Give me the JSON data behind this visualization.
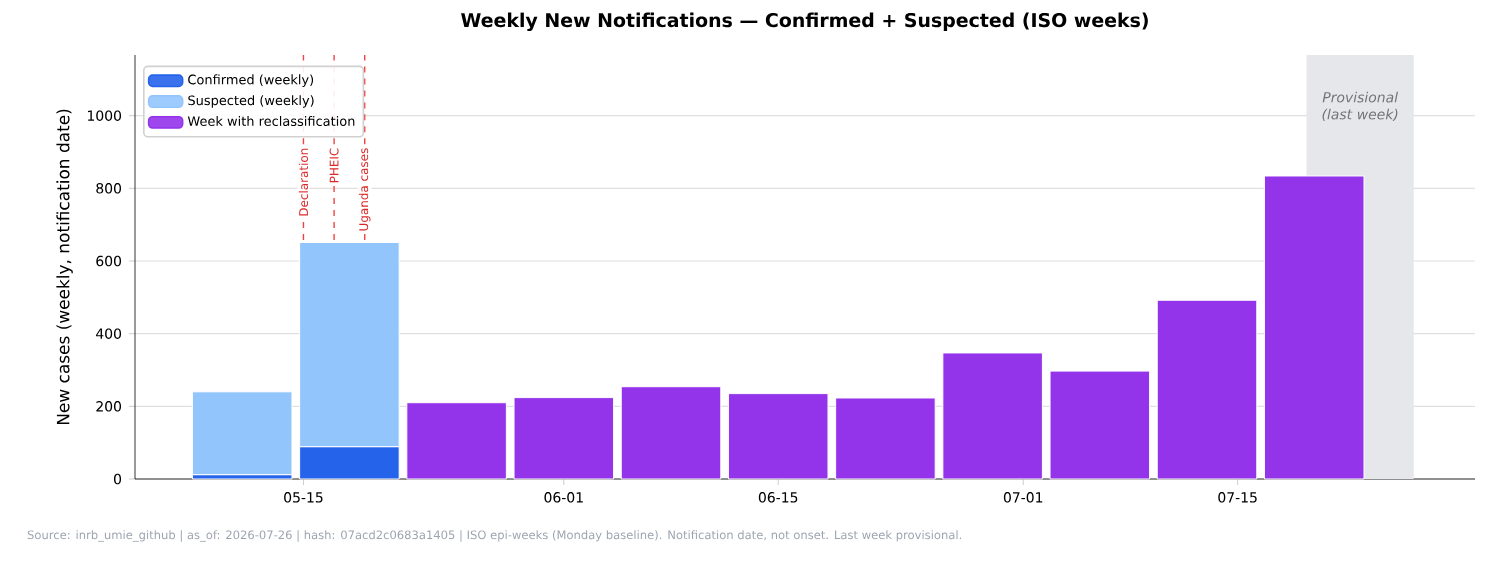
{
  "chart_data": {
    "type": "bar",
    "stacked": true,
    "title": "Weekly New Notifications — Confirmed + Suspected (ISO weeks)",
    "ylabel": "New cases (weekly, notification date)",
    "x": [
      "2026-05-11",
      "2026-05-18",
      "2026-05-25",
      "2026-06-01",
      "2026-06-08",
      "2026-06-15",
      "2026-06-22",
      "2026-06-29",
      "2026-07-06",
      "2026-07-13",
      "2026-07-20"
    ],
    "series": [
      {
        "name": "Confirmed (weekly)",
        "color": "#2563eb",
        "values": [
          12,
          89,
          null,
          null,
          null,
          null,
          null,
          null,
          null,
          null,
          null
        ]
      },
      {
        "name": "Suspected (weekly)",
        "color": "#93c5fd",
        "values": [
          228,
          562,
          null,
          null,
          null,
          null,
          null,
          null,
          null,
          null,
          null
        ]
      },
      {
        "name": "Week with reclassification",
        "color": "#9333ea",
        "values": [
          null,
          null,
          210,
          224,
          254,
          235,
          223,
          347,
          297,
          492,
          834
        ]
      }
    ],
    "xlim": [
      "2026-05-04",
      "2026-07-30T12:00"
    ],
    "xticks": [
      {
        "value": "2026-05-15",
        "label": "05-15"
      },
      {
        "value": "2026-06-01",
        "label": "06-01"
      },
      {
        "value": "2026-06-15",
        "label": "06-15"
      },
      {
        "value": "2026-07-01",
        "label": "07-01"
      },
      {
        "value": "2026-07-15",
        "label": "07-15"
      }
    ],
    "ylim": [
      0,
      1167
    ],
    "yticks": [
      0,
      200,
      400,
      600,
      800,
      1000
    ],
    "grid": "y",
    "legend": "top left",
    "ref_lines": [
      {
        "axis": "x",
        "value": "2026-05-15",
        "label": "Declaration",
        "color": "#ef4444",
        "line_style": "dashed"
      },
      {
        "axis": "x",
        "value": "2026-05-17",
        "label": "PHEIC",
        "color": "#ef4444",
        "line_style": "dashed"
      },
      {
        "axis": "x",
        "value": "2026-05-19",
        "label": "Uganda cases",
        "color": "#ef4444",
        "line_style": "dashed"
      }
    ],
    "bands": [
      {
        "axis": "x",
        "from": "2026-07-19T12:00",
        "to": "2026-07-26T12:00",
        "label": "Provisional (last week)",
        "color": "#e5e7eb"
      }
    ],
    "annotations": [
      "Source: inrb_umie_github | as_of: 2026-07-26 | hash: 07acd2c0683a1405 | ISO epi-weeks (Monday baseline). Notification date, not onset. Last week provisional."
    ]
  }
}
